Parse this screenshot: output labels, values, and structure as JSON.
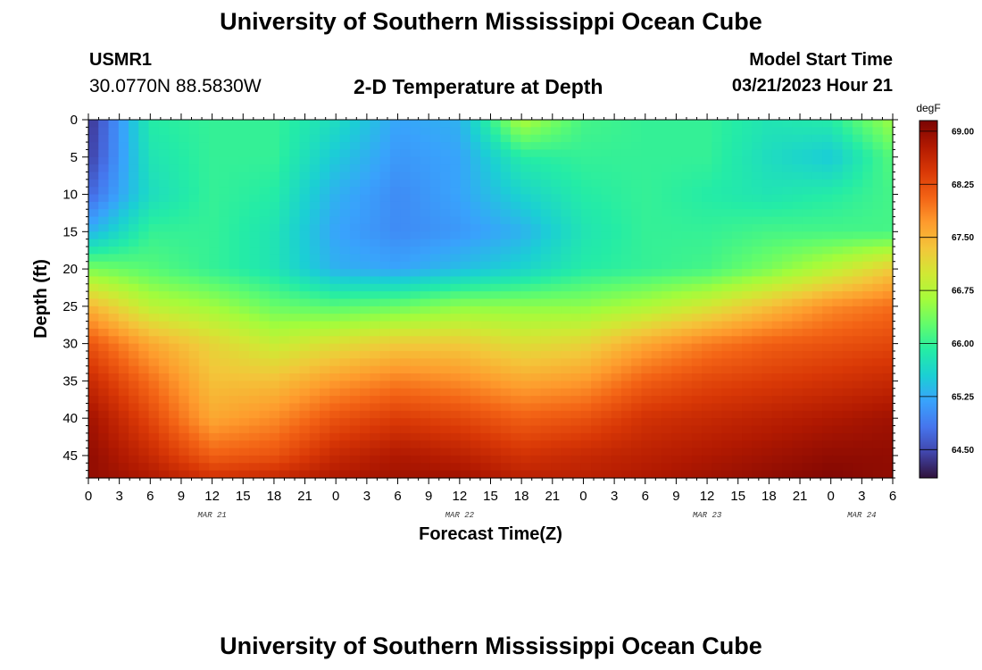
{
  "header": {
    "title": "University of Southern Mississippi Ocean Cube",
    "station_id": "USMR1",
    "coordinates": "30.0770N  88.5830W",
    "plot_title": "2-D Temperature at Depth",
    "start_label": "Model Start Time",
    "start_value": "03/21/2023 Hour 21"
  },
  "footer": {
    "title": "University of Southern Mississippi Ocean Cube"
  },
  "chart_data": {
    "type": "heatmap",
    "title": "2-D Temperature at Depth",
    "xlabel": "Forecast Time(Z)",
    "ylabel": "Depth (ft)",
    "x_tick_labels": [
      "0",
      "3",
      "6",
      "9",
      "12",
      "15",
      "18",
      "21",
      "0",
      "3",
      "6",
      "9",
      "12",
      "15",
      "18",
      "21",
      "0",
      "3",
      "6",
      "9",
      "12",
      "15",
      "18",
      "21",
      "0",
      "3",
      "6"
    ],
    "date_labels": [
      {
        "label": "MAR 21",
        "at_tick": 4
      },
      {
        "label": "MAR 22",
        "at_tick": 12
      },
      {
        "label": "MAR 23",
        "at_tick": 20
      },
      {
        "label": "MAR 24",
        "at_tick": 25
      }
    ],
    "x_range_hours": [
      0,
      78
    ],
    "y_ticks": [
      0,
      5,
      10,
      15,
      20,
      25,
      30,
      35,
      40,
      45
    ],
    "ylim": [
      0,
      48
    ],
    "y_inverted": true,
    "colorbar": {
      "unit": "degF",
      "tick_labels": [
        "69.00",
        "68.25",
        "67.50",
        "66.75",
        "66.00",
        "65.25",
        "64.50"
      ],
      "range": [
        64.1,
        69.15
      ],
      "colors": [
        "#30123b",
        "#4145ab",
        "#4675ed",
        "#39a2fc",
        "#1bcfd4",
        "#24eca6",
        "#61fc6c",
        "#a4fc3b",
        "#d1e834",
        "#f3c63a",
        "#fe9b2d",
        "#f36315",
        "#d93806",
        "#b11901",
        "#7a0403"
      ]
    },
    "grid": false,
    "temperature_grid": {
      "x_hours": [
        0,
        6,
        12,
        18,
        24,
        30,
        36,
        42,
        48,
        54,
        60,
        66,
        72,
        78
      ],
      "y_depths_ft": [
        0,
        5,
        10,
        15,
        20,
        25,
        30,
        35,
        40,
        45,
        48
      ],
      "z_degF": [
        [
          64.3,
          65.9,
          66.0,
          66.0,
          65.7,
          65.2,
          65.3,
          66.7,
          66.1,
          66.0,
          66.0,
          65.8,
          65.9,
          66.6
        ],
        [
          64.4,
          65.8,
          66.0,
          66.0,
          65.5,
          65.1,
          65.2,
          65.9,
          66.0,
          66.0,
          66.0,
          65.7,
          65.5,
          66.2
        ],
        [
          64.7,
          65.7,
          66.0,
          65.9,
          65.3,
          65.0,
          65.2,
          65.6,
          65.9,
          66.0,
          65.9,
          65.8,
          65.9,
          66.1
        ],
        [
          65.3,
          66.0,
          66.0,
          65.8,
          65.2,
          65.0,
          65.1,
          65.3,
          65.8,
          66.0,
          66.0,
          66.1,
          66.1,
          66.1
        ],
        [
          66.4,
          66.2,
          66.0,
          65.8,
          65.3,
          65.2,
          65.4,
          65.6,
          65.9,
          66.0,
          66.1,
          66.4,
          66.8,
          67.3
        ],
        [
          67.5,
          66.8,
          66.6,
          66.3,
          66.2,
          66.3,
          66.5,
          66.5,
          66.5,
          66.7,
          67.0,
          67.4,
          67.8,
          68.0
        ],
        [
          68.2,
          67.6,
          67.2,
          66.9,
          67.1,
          67.3,
          67.3,
          67.1,
          67.2,
          67.6,
          67.9,
          68.1,
          68.2,
          68.3
        ],
        [
          68.6,
          68.0,
          67.4,
          67.4,
          67.7,
          67.9,
          67.8,
          67.6,
          67.7,
          68.1,
          68.3,
          68.4,
          68.5,
          68.6
        ],
        [
          68.9,
          68.3,
          67.6,
          67.8,
          68.2,
          68.4,
          68.3,
          68.1,
          68.2,
          68.5,
          68.6,
          68.7,
          68.8,
          68.9
        ],
        [
          69.0,
          68.6,
          68.1,
          68.2,
          68.6,
          68.8,
          68.7,
          68.5,
          68.6,
          68.7,
          68.8,
          68.9,
          69.0,
          69.0
        ],
        [
          69.0,
          68.8,
          68.5,
          68.6,
          68.8,
          68.9,
          68.9,
          68.7,
          68.7,
          68.8,
          68.9,
          69.0,
          69.1,
          69.0
        ]
      ]
    }
  }
}
